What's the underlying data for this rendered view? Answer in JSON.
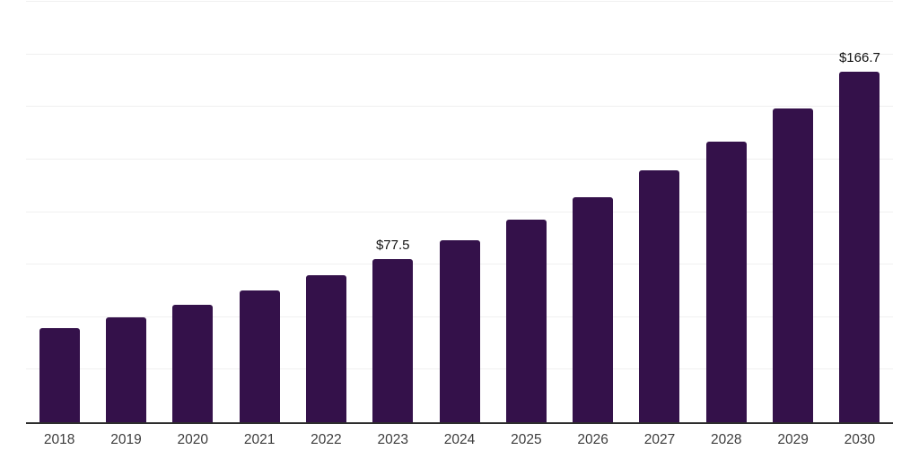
{
  "chart": {
    "background_color": "#ffffff",
    "bar_color": "#34114a",
    "grid_color": "#f0f0f0",
    "axis_color": "#2d2d2d",
    "tick_label_color": "#3d3d3d",
    "data_label_color": "#111111"
  },
  "chart_data": {
    "type": "bar",
    "title": "",
    "xlabel": "",
    "ylabel": "",
    "categories": [
      "2018",
      "2019",
      "2020",
      "2021",
      "2022",
      "2023",
      "2024",
      "2025",
      "2026",
      "2027",
      "2028",
      "2029",
      "2030"
    ],
    "values": [
      44.8,
      49.9,
      55.9,
      62.7,
      69.9,
      77.5,
      86.6,
      96.4,
      107.0,
      119.8,
      133.4,
      149.2,
      166.7
    ],
    "data_labels": [
      null,
      null,
      null,
      null,
      null,
      "$77.5",
      null,
      null,
      null,
      null,
      null,
      null,
      "$166.7"
    ],
    "ylim": [
      0,
      200
    ],
    "grid_step": 25,
    "grid": true,
    "y_tick_labels_visible": false,
    "legend_position": "none"
  }
}
